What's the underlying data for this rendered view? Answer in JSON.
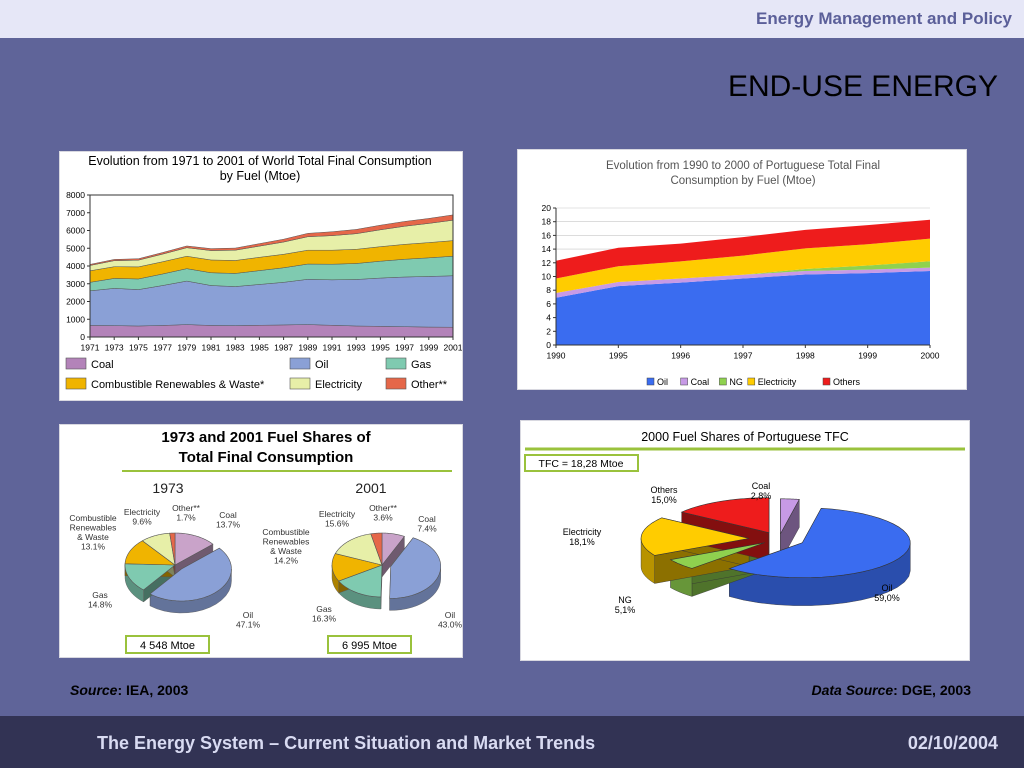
{
  "header": {
    "brand": "Energy Management and Policy",
    "slide_title": "END-USE ENERGY"
  },
  "footer": {
    "title": "The Energy System – Current Situation and Market Trends",
    "date": "02/10/2004"
  },
  "sources": {
    "left_label": "Source",
    "left_value": ": IEA, 2003",
    "right_label": "Data Source",
    "right_value": ": DGE, 2003"
  },
  "chart_data": [
    {
      "type": "area",
      "title": "Evolution from 1971 to 2001 of  World Total Final Consumption by Fuel (Mtoe)",
      "title_lines": [
        "Evolution from 1971 to 2001 of  World Total Final Consumption",
        "by Fuel (Mtoe)"
      ],
      "x": [
        1971,
        1973,
        1975,
        1977,
        1979,
        1981,
        1983,
        1985,
        1987,
        1989,
        1991,
        1993,
        1995,
        1997,
        1999,
        2001
      ],
      "xtick_labels": [
        "1971",
        "1973",
        "1975",
        "1977",
        "1979",
        "1981",
        "1983",
        "1985",
        "1987",
        "1989",
        "1991",
        "1993",
        "1995",
        "1997",
        "1999",
        "2001"
      ],
      "ylim": [
        0,
        8000
      ],
      "yticks": [
        0,
        1000,
        2000,
        3000,
        4000,
        5000,
        6000,
        7000,
        8000
      ],
      "stacked": true,
      "legend_position": "bottom",
      "series": [
        {
          "name": "Coal",
          "color": "#b383b9",
          "values": [
            650,
            640,
            620,
            650,
            700,
            650,
            640,
            660,
            680,
            700,
            660,
            620,
            600,
            580,
            560,
            550
          ]
        },
        {
          "name": "Oil",
          "color": "#8aa0d6",
          "values": [
            1950,
            2100,
            2050,
            2250,
            2450,
            2250,
            2200,
            2300,
            2400,
            2550,
            2560,
            2620,
            2720,
            2800,
            2850,
            2900
          ]
        },
        {
          "name": "Gas",
          "color": "#7fcab0",
          "values": [
            480,
            560,
            600,
            650,
            700,
            720,
            740,
            780,
            820,
            860,
            880,
            900,
            950,
            1000,
            1050,
            1100
          ]
        },
        {
          "name": "Combustible Renewables & Waste*",
          "color": "#f0b400",
          "values": [
            650,
            660,
            680,
            690,
            700,
            720,
            730,
            750,
            760,
            780,
            790,
            800,
            820,
            840,
            860,
            880
          ]
        },
        {
          "name": "Electricity",
          "color": "#e7efa8",
          "values": [
            300,
            340,
            380,
            430,
            480,
            530,
            580,
            630,
            690,
            760,
            820,
            880,
            950,
            1020,
            1080,
            1150
          ]
        },
        {
          "name": "Other**",
          "color": "#e56749",
          "values": [
            60,
            70,
            80,
            90,
            100,
            110,
            120,
            140,
            160,
            190,
            220,
            240,
            260,
            270,
            280,
            300
          ]
        }
      ]
    },
    {
      "type": "area",
      "title": "Evolution from 1990 to 2000 of Portuguese Total Final Consumption by Fuel (Mtoe)",
      "title_lines": [
        "Evolution from 1990 to 2000 of Portuguese Total Final",
        "Consumption by Fuel (Mtoe)"
      ],
      "x": [
        1990,
        1995,
        1996,
        1997,
        1998,
        1999,
        2000
      ],
      "xtick_labels": [
        "1990",
        "1995",
        "1996",
        "1997",
        "1998",
        "1999",
        "2000"
      ],
      "ylim": [
        0,
        20
      ],
      "yticks": [
        0,
        2,
        4,
        6,
        8,
        10,
        12,
        14,
        16,
        18,
        20
      ],
      "stacked": true,
      "grid": "horizontal",
      "legend_position": "bottom",
      "series": [
        {
          "name": "Oil",
          "color": "#3a6cf0",
          "values": [
            6.9,
            8.6,
            9.1,
            9.7,
            10.3,
            10.5,
            10.8
          ]
        },
        {
          "name": "Coal",
          "color": "#c79ae6",
          "values": [
            0.7,
            0.6,
            0.6,
            0.55,
            0.5,
            0.5,
            0.5
          ]
        },
        {
          "name": "NG",
          "color": "#8fd14f",
          "values": [
            0.0,
            0.0,
            0.0,
            0.0,
            0.3,
            0.6,
            0.93
          ]
        },
        {
          "name": "Electricity",
          "color": "#ffcc00",
          "values": [
            2.1,
            2.3,
            2.5,
            2.8,
            3.0,
            3.1,
            3.3
          ]
        },
        {
          "name": "Others",
          "color": "#ee1c1c",
          "values": [
            2.6,
            2.7,
            2.6,
            2.7,
            2.7,
            2.8,
            2.75
          ]
        }
      ]
    },
    {
      "type": "pie",
      "title": "1973 and 2001 Fuel Shares of Total Final Consumption",
      "title_lines": [
        "1973 and 2001 Fuel Shares of",
        "Total Final Consumption"
      ],
      "pies": [
        {
          "name": "1973",
          "total": "4 548 Mtoe",
          "slices": [
            {
              "key": "coal",
              "label_lines": [
                "Coal",
                "13.7%"
              ],
              "value": 13.7,
              "color": "#c9a3c9"
            },
            {
              "key": "oil",
              "label_lines": [
                "Oil",
                "47.1%"
              ],
              "value": 47.1,
              "color": "#8aa0d6"
            },
            {
              "key": "gas",
              "label_lines": [
                "Gas",
                "14.8%"
              ],
              "value": 14.8,
              "color": "#7fcab0"
            },
            {
              "key": "renewables",
              "label_lines": [
                "Combustible",
                "Renewables",
                "& Waste",
                "13.1%"
              ],
              "value": 13.1,
              "color": "#f0b400"
            },
            {
              "key": "electricity",
              "label_lines": [
                "Electricity",
                "9.6%"
              ],
              "value": 9.6,
              "color": "#e7efa8"
            },
            {
              "key": "other",
              "label_lines": [
                "Other**",
                "1.7%"
              ],
              "value": 1.7,
              "color": "#e56749"
            }
          ]
        },
        {
          "name": "2001",
          "total": "6 995 Mtoe",
          "slices": [
            {
              "key": "coal",
              "label_lines": [
                "Coal",
                "7.4%"
              ],
              "value": 7.4,
              "color": "#c9a3c9"
            },
            {
              "key": "oil",
              "label_lines": [
                "Oil",
                "43.0%"
              ],
              "value": 43.0,
              "color": "#8aa0d6"
            },
            {
              "key": "gas",
              "label_lines": [
                "Gas",
                "16.3%"
              ],
              "value": 16.3,
              "color": "#7fcab0"
            },
            {
              "key": "renewables",
              "label_lines": [
                "Combustible",
                "Renewables",
                "& Waste",
                "14.2%"
              ],
              "value": 14.2,
              "color": "#f0b400"
            },
            {
              "key": "electricity",
              "label_lines": [
                "Electricity",
                "15.6%"
              ],
              "value": 15.6,
              "color": "#e7efa8"
            },
            {
              "key": "other",
              "label_lines": [
                "Other**",
                "3.6%"
              ],
              "value": 3.6,
              "color": "#e56749"
            }
          ]
        }
      ]
    },
    {
      "type": "pie",
      "title": "2000 Fuel Shares of Portuguese TFC",
      "total_label": "TFC = 18,28 Mtoe",
      "slices": [
        {
          "key": "coal",
          "label_lines": [
            "Coal",
            "2,8%"
          ],
          "value": 2.8,
          "color": "#c79ae6"
        },
        {
          "key": "oil",
          "label_lines": [
            "Oil",
            "59,0%"
          ],
          "value": 59.0,
          "color": "#3a6cf0"
        },
        {
          "key": "ng",
          "label_lines": [
            "NG",
            "5,1%"
          ],
          "value": 5.1,
          "color": "#8fd14f"
        },
        {
          "key": "electricity",
          "label_lines": [
            "Electricity",
            "18,1%"
          ],
          "value": 18.1,
          "color": "#ffcc00"
        },
        {
          "key": "others",
          "label_lines": [
            "Others",
            "15,0%"
          ],
          "value": 15.0,
          "color": "#ee1c1c"
        }
      ]
    }
  ]
}
